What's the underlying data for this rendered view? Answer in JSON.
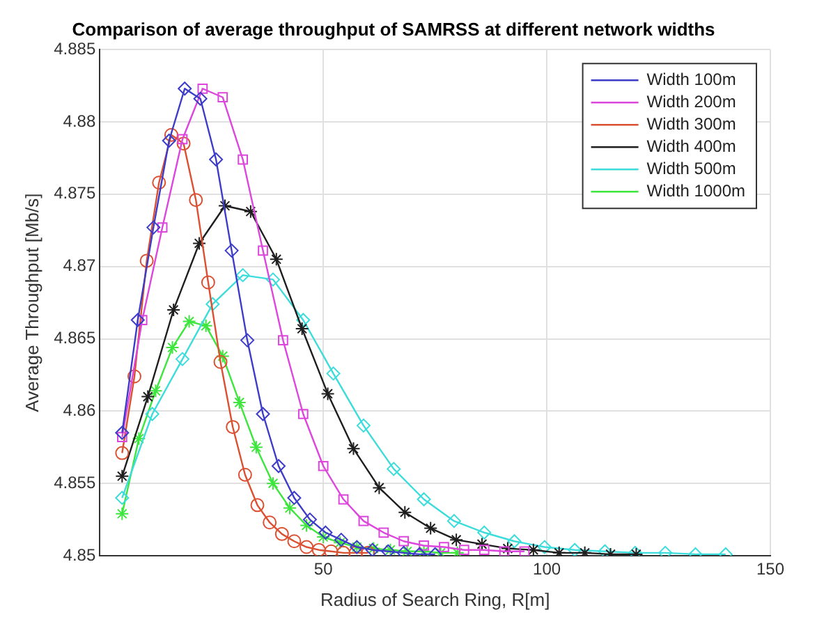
{
  "chart_data": {
    "type": "line",
    "title": "Comparison of average throughput of SAMRSS at different network widths",
    "xlabel": "Radius of Search Ring, R[m]",
    "ylabel": "Average Throughput [Mb/s]",
    "xlim": [
      0,
      150
    ],
    "xticks": [
      50,
      100,
      150
    ],
    "ylim": [
      4.85,
      4.885
    ],
    "yticks": [
      4.85,
      4.855,
      4.86,
      4.865,
      4.87,
      4.875,
      4.88,
      4.885
    ],
    "grid": true,
    "legend": "top right",
    "line_style": "solid",
    "series": [
      {
        "name": "Width 100m",
        "color": "#3c3cc8",
        "marker": "diamond",
        "x": [
          5,
          8.5,
          12,
          15.5,
          19,
          22.5,
          26,
          29.5,
          33,
          36.5,
          40,
          43.5,
          47,
          50.5,
          54,
          57.5,
          61,
          64.5,
          68,
          71.5,
          75
        ],
        "values": [
          4.8585,
          4.8663,
          4.8727,
          4.8787,
          4.8823,
          4.8816,
          4.8774,
          4.8711,
          4.8649,
          4.8598,
          4.8562,
          4.854,
          4.8525,
          4.8516,
          4.8511,
          4.8506,
          4.8504,
          4.8503,
          4.8502,
          4.8501,
          4.8501
        ]
      },
      {
        "name": "Width 200m",
        "color": "#dc46dc",
        "marker": "square",
        "x": [
          5,
          9.5,
          14,
          18.5,
          23,
          27.5,
          32,
          36.5,
          41,
          45.5,
          50,
          54.5,
          59,
          63.5,
          68,
          72.5,
          77,
          81.5,
          86,
          90.5,
          95
        ],
        "values": [
          4.8582,
          4.8663,
          4.8727,
          4.8788,
          4.8823,
          4.8817,
          4.8774,
          4.8711,
          4.8649,
          4.8598,
          4.8562,
          4.8539,
          4.8524,
          4.8516,
          4.851,
          4.8507,
          4.8506,
          4.8504,
          4.8504,
          4.8503,
          4.8503
        ]
      },
      {
        "name": "Width 300m",
        "color": "#dc5032",
        "marker": "circle",
        "x": [
          5,
          7.75,
          10.5,
          13.25,
          16,
          18.75,
          21.5,
          24.25,
          27,
          29.75,
          32.5,
          35.25,
          38,
          40.75,
          43.5,
          46.25,
          49,
          51.75,
          54.5,
          57.25,
          60
        ],
        "values": [
          4.8571,
          4.8624,
          4.8704,
          4.8758,
          4.8791,
          4.8785,
          4.8746,
          4.8689,
          4.8634,
          4.8589,
          4.8556,
          4.8535,
          4.8523,
          4.8515,
          4.851,
          4.8506,
          4.8504,
          4.8503,
          4.8502,
          4.8502,
          4.8502
        ]
      },
      {
        "name": "Width 400m",
        "color": "#1e1e1e",
        "marker": "cross",
        "x": [
          5,
          10.75,
          16.5,
          22.25,
          28,
          33.75,
          39.5,
          45.25,
          51,
          56.75,
          62.5,
          68.25,
          74,
          79.75,
          85.5,
          91.25,
          97,
          102.75,
          108.5,
          114.25,
          120
        ],
        "values": [
          4.8555,
          4.861,
          4.867,
          4.8716,
          4.8742,
          4.8738,
          4.8705,
          4.8657,
          4.8612,
          4.8574,
          4.8547,
          4.853,
          4.8519,
          4.8511,
          4.8508,
          4.8505,
          4.8504,
          4.8502,
          4.8502,
          4.8501,
          4.8501
        ]
      },
      {
        "name": "Width 500m",
        "color": "#3cdcdc",
        "marker": "diamond",
        "x": [
          5,
          11.75,
          18.5,
          25.25,
          32,
          38.75,
          45.5,
          52.25,
          59,
          65.75,
          72.5,
          79.25,
          86,
          92.75,
          99.5,
          106.25,
          113,
          119.75,
          126.5,
          133.25,
          140
        ],
        "values": [
          4.854,
          4.8598,
          4.8636,
          4.8674,
          4.8694,
          4.8691,
          4.8663,
          4.8626,
          4.859,
          4.856,
          4.8539,
          4.8524,
          4.8516,
          4.851,
          4.8506,
          4.8504,
          4.8503,
          4.8502,
          4.8502,
          4.8501,
          4.8501
        ]
      },
      {
        "name": "Width 1000m",
        "color": "#3ce63c",
        "marker": "cross",
        "x": [
          5,
          8.75,
          12.5,
          16.25,
          20,
          23.75,
          27.5,
          31.25,
          35,
          38.75,
          42.5,
          46.25,
          50,
          53.75,
          57.5,
          61.25,
          65,
          68.75,
          72.5,
          76.25,
          80
        ],
        "values": [
          4.8529,
          4.8581,
          4.8614,
          4.8644,
          4.8662,
          4.8659,
          4.8638,
          4.8606,
          4.8575,
          4.855,
          4.8533,
          4.8521,
          4.8513,
          4.8509,
          4.8506,
          4.8505,
          4.8504,
          4.8503,
          4.8503,
          4.8502,
          4.8502
        ]
      }
    ]
  }
}
